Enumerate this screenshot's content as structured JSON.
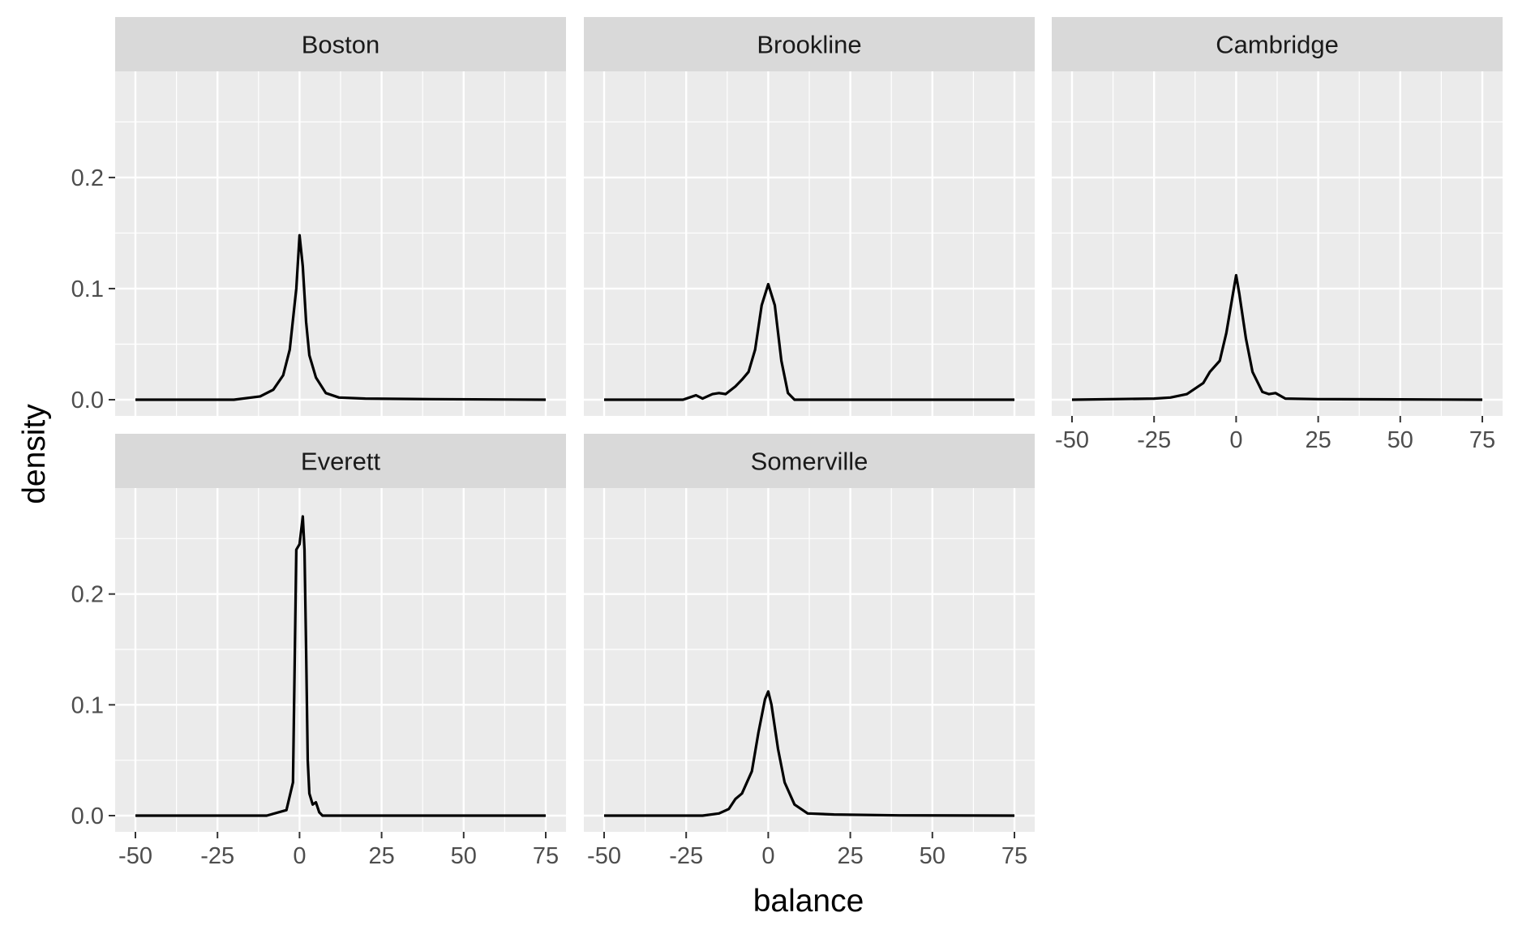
{
  "chart_data": {
    "type": "line",
    "subtype": "faceted-density",
    "xlabel": "balance",
    "ylabel": "density",
    "xlim": [
      -50,
      75
    ],
    "ylim": [
      0,
      0.27
    ],
    "x_ticks": [
      -50,
      -25,
      0,
      25,
      50,
      75
    ],
    "x_tick_labels": [
      "-50",
      "-25",
      "0",
      "25",
      "50",
      "75"
    ],
    "y_ticks": [
      0.0,
      0.1,
      0.2
    ],
    "y_tick_labels": [
      "0.0",
      "0.1",
      "0.2"
    ],
    "grid": true,
    "line_color": "#000000",
    "panel_background": "#ebebeb",
    "strip_background": "#d9d9d9",
    "facets": [
      {
        "name": "Boston",
        "x": [
          -50,
          -20,
          -12,
          -8,
          -5,
          -3,
          -1,
          0,
          1,
          2,
          3,
          5,
          8,
          12,
          20,
          40,
          75
        ],
        "y": [
          0.0,
          0.0,
          0.003,
          0.009,
          0.022,
          0.045,
          0.1,
          0.148,
          0.12,
          0.07,
          0.04,
          0.02,
          0.006,
          0.002,
          0.001,
          0.0005,
          0.0
        ]
      },
      {
        "name": "Brookline",
        "x": [
          -50,
          -26,
          -24,
          -22,
          -20,
          -17,
          -15,
          -13,
          -10,
          -8,
          -6,
          -4,
          -2,
          0,
          2,
          4,
          6,
          8,
          12,
          75
        ],
        "y": [
          0.0,
          0.0,
          0.002,
          0.004,
          0.001,
          0.005,
          0.006,
          0.005,
          0.012,
          0.018,
          0.025,
          0.045,
          0.085,
          0.104,
          0.085,
          0.035,
          0.006,
          0.0,
          0.0,
          0.0
        ]
      },
      {
        "name": "Cambridge",
        "x": [
          -50,
          -25,
          -20,
          -15,
          -10,
          -8,
          -5,
          -3,
          -1,
          0,
          1,
          3,
          5,
          8,
          10,
          12,
          15,
          25,
          50,
          75
        ],
        "y": [
          0.0,
          0.001,
          0.002,
          0.005,
          0.015,
          0.025,
          0.035,
          0.06,
          0.095,
          0.112,
          0.095,
          0.055,
          0.025,
          0.007,
          0.005,
          0.006,
          0.001,
          0.0005,
          0.0003,
          0.0
        ]
      },
      {
        "name": "Everett",
        "x": [
          -50,
          -10,
          -4,
          -2,
          -1,
          0,
          1,
          1.5,
          2,
          2.5,
          3,
          4,
          5,
          6,
          7,
          75
        ],
        "y": [
          0.0,
          0.0,
          0.005,
          0.03,
          0.24,
          0.245,
          0.27,
          0.24,
          0.15,
          0.05,
          0.02,
          0.01,
          0.012,
          0.003,
          0.0,
          0.0
        ]
      },
      {
        "name": "Somerville",
        "x": [
          -50,
          -20,
          -15,
          -12,
          -10,
          -8,
          -5,
          -3,
          -1,
          0,
          1,
          3,
          5,
          8,
          12,
          20,
          40,
          75
        ],
        "y": [
          0.0,
          0.0,
          0.002,
          0.006,
          0.015,
          0.02,
          0.04,
          0.075,
          0.105,
          0.112,
          0.1,
          0.06,
          0.03,
          0.01,
          0.002,
          0.001,
          0.0002,
          0.0
        ]
      }
    ]
  }
}
